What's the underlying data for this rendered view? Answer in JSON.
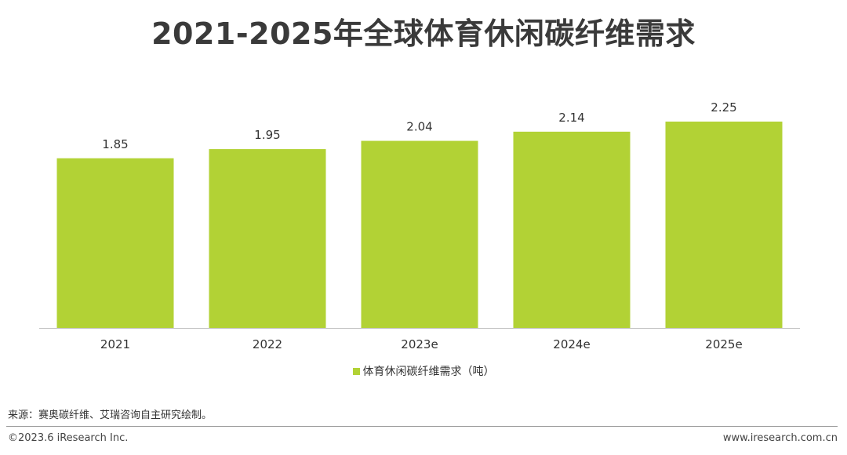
{
  "header": {
    "title": "2021-2025年全球体育休闲碳纤维需求"
  },
  "chart_data": {
    "type": "bar",
    "categories": [
      "2021",
      "2022",
      "2023e",
      "2024e",
      "2025e"
    ],
    "series": [
      {
        "name": "体育休闲碳纤维需求（吨）",
        "values": [
          1.85,
          1.95,
          2.04,
          2.14,
          2.25
        ]
      }
    ],
    "value_labels": [
      "1.85",
      "1.95",
      "2.04",
      "2.14",
      "2.25"
    ],
    "ylim": [
      0,
      2.25
    ],
    "grid": false,
    "legend_position": "bottom",
    "bar_color": "#b2d235"
  },
  "footer": {
    "source": "来源：赛奥碳纤维、艾瑞咨询自主研究绘制。",
    "copyright": "©2023.6 iResearch Inc.",
    "website": "www.iresearch.com.cn"
  }
}
